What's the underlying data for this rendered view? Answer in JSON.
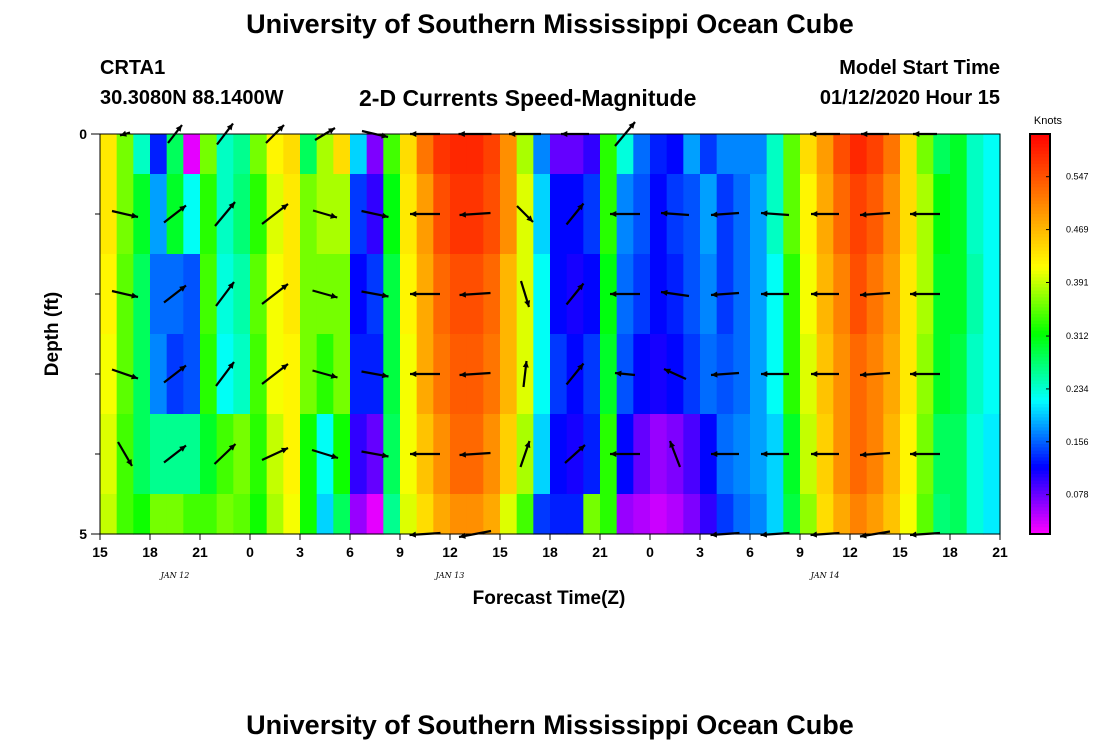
{
  "header": {
    "title_top": "University of Southern Mississippi Ocean Cube",
    "title_bottom": "University of Southern Mississippi Ocean Cube",
    "station_id": "CRTA1",
    "station_coords": "30.3080N 88.1400W",
    "plot_subtitle": "2-D Currents Speed-Magnitude",
    "model_start_label": "Model Start Time",
    "model_start_value": "01/12/2020 Hour 15"
  },
  "colors": {
    "scale": [
      "#ff00ff",
      "#8000ff",
      "#0000ff",
      "#0080ff",
      "#00ffff",
      "#00ff80",
      "#00ff00",
      "#80ff00",
      "#ffff00",
      "#ffc000",
      "#ff8000",
      "#ff4000",
      "#ff0000"
    ],
    "arrow": "#000000"
  },
  "chart_data": {
    "type": "heatmap",
    "title": "2-D Currents Speed-Magnitude",
    "xlabel": "Forecast Time(Z)",
    "ylabel": "Depth (ft)",
    "x_start_hour": 15,
    "x_range_hours": [
      0,
      54
    ],
    "x_ticks": [
      {
        "h": 0,
        "label": "15"
      },
      {
        "h": 3,
        "label": "18"
      },
      {
        "h": 6,
        "label": "21"
      },
      {
        "h": 9,
        "label": "0"
      },
      {
        "h": 12,
        "label": "3"
      },
      {
        "h": 15,
        "label": "6"
      },
      {
        "h": 18,
        "label": "9"
      },
      {
        "h": 21,
        "label": "12"
      },
      {
        "h": 24,
        "label": "15"
      },
      {
        "h": 27,
        "label": "18"
      },
      {
        "h": 30,
        "label": "21"
      },
      {
        "h": 33,
        "label": "0"
      },
      {
        "h": 36,
        "label": "3"
      },
      {
        "h": 39,
        "label": "6"
      },
      {
        "h": 42,
        "label": "9"
      },
      {
        "h": 45,
        "label": "12"
      },
      {
        "h": 48,
        "label": "15"
      },
      {
        "h": 51,
        "label": "18"
      },
      {
        "h": 54,
        "label": "21"
      }
    ],
    "date_labels": [
      {
        "h": 4.5,
        "label": "JAN 12"
      },
      {
        "h": 21,
        "label": "JAN 13"
      },
      {
        "h": 43.5,
        "label": "JAN 14"
      }
    ],
    "y_range_ft": [
      0,
      5
    ],
    "y_ticks": [
      {
        "v": 0,
        "label": "0"
      },
      {
        "v": 5,
        "label": "5"
      }
    ],
    "y_minor_ticks": [
      1,
      2,
      3,
      4
    ],
    "depth_bins_ft": [
      0,
      0.5,
      1.5,
      2.5,
      3.5,
      4.5
    ],
    "colorbar": {
      "unit": "Knots",
      "range": [
        0.02,
        0.61
      ],
      "tick_values": [
        0.078,
        0.156,
        0.234,
        0.312,
        0.391,
        0.469,
        0.547
      ],
      "tick_labels": [
        "0.078",
        "0.156",
        "0.234",
        "0.312",
        "0.391",
        "0.469",
        "0.547"
      ]
    },
    "speed_time_hours": [
      0,
      1,
      2,
      3,
      4,
      5,
      6,
      7,
      8,
      9,
      10,
      11,
      12,
      13,
      14,
      15,
      16,
      17,
      18,
      19,
      20,
      21,
      22,
      23,
      24,
      25,
      26,
      27,
      28,
      29,
      30,
      31,
      32,
      33,
      34,
      35,
      36,
      37,
      38,
      39,
      40,
      41,
      42,
      43,
      44,
      45,
      46,
      47,
      48,
      49,
      50,
      51,
      52,
      53
    ],
    "speed_knots": [
      [
        0.43,
        0.36,
        0.24,
        0.13,
        0.28,
        0.03,
        0.36,
        0.24,
        0.26,
        0.36,
        0.42,
        0.44,
        0.28,
        0.38,
        0.44,
        0.2,
        0.07,
        0.34,
        0.44,
        0.52,
        0.57,
        0.58,
        0.58,
        0.56,
        0.5,
        0.38,
        0.17,
        0.08,
        0.08,
        0.1,
        0.33,
        0.23,
        0.16,
        0.13,
        0.12,
        0.18,
        0.14,
        0.17,
        0.17,
        0.17,
        0.24,
        0.35,
        0.44,
        0.49,
        0.55,
        0.58,
        0.56,
        0.52,
        0.44,
        0.36,
        0.28,
        0.3,
        0.24,
        0.22
      ],
      [
        0.43,
        0.36,
        0.3,
        0.18,
        0.3,
        0.22,
        0.33,
        0.24,
        0.27,
        0.33,
        0.4,
        0.43,
        0.36,
        0.38,
        0.38,
        0.14,
        0.1,
        0.31,
        0.43,
        0.49,
        0.55,
        0.57,
        0.57,
        0.55,
        0.5,
        0.4,
        0.2,
        0.12,
        0.12,
        0.14,
        0.33,
        0.17,
        0.15,
        0.12,
        0.14,
        0.15,
        0.18,
        0.14,
        0.16,
        0.18,
        0.24,
        0.35,
        0.42,
        0.48,
        0.53,
        0.56,
        0.54,
        0.5,
        0.44,
        0.38,
        0.31,
        0.3,
        0.24,
        0.22
      ],
      [
        0.42,
        0.35,
        0.28,
        0.16,
        0.16,
        0.15,
        0.34,
        0.23,
        0.25,
        0.35,
        0.41,
        0.43,
        0.36,
        0.36,
        0.36,
        0.12,
        0.14,
        0.29,
        0.42,
        0.48,
        0.53,
        0.55,
        0.55,
        0.53,
        0.47,
        0.4,
        0.22,
        0.12,
        0.11,
        0.12,
        0.31,
        0.16,
        0.14,
        0.12,
        0.13,
        0.15,
        0.17,
        0.14,
        0.16,
        0.18,
        0.22,
        0.33,
        0.41,
        0.47,
        0.51,
        0.55,
        0.52,
        0.49,
        0.43,
        0.38,
        0.3,
        0.3,
        0.25,
        0.22
      ],
      [
        0.41,
        0.35,
        0.28,
        0.17,
        0.14,
        0.15,
        0.33,
        0.22,
        0.24,
        0.34,
        0.41,
        0.42,
        0.36,
        0.33,
        0.36,
        0.13,
        0.13,
        0.29,
        0.41,
        0.48,
        0.52,
        0.54,
        0.54,
        0.52,
        0.47,
        0.4,
        0.22,
        0.14,
        0.12,
        0.14,
        0.3,
        0.15,
        0.12,
        0.11,
        0.12,
        0.14,
        0.16,
        0.15,
        0.16,
        0.18,
        0.22,
        0.33,
        0.4,
        0.46,
        0.5,
        0.53,
        0.51,
        0.48,
        0.43,
        0.37,
        0.3,
        0.29,
        0.24,
        0.22
      ],
      [
        0.4,
        0.34,
        0.28,
        0.26,
        0.26,
        0.26,
        0.3,
        0.34,
        0.36,
        0.33,
        0.39,
        0.42,
        0.32,
        0.22,
        0.32,
        0.1,
        0.08,
        0.28,
        0.41,
        0.46,
        0.5,
        0.53,
        0.53,
        0.5,
        0.45,
        0.38,
        0.2,
        0.12,
        0.11,
        0.13,
        0.33,
        0.12,
        0.08,
        0.06,
        0.07,
        0.09,
        0.12,
        0.16,
        0.17,
        0.18,
        0.2,
        0.3,
        0.39,
        0.45,
        0.5,
        0.53,
        0.51,
        0.47,
        0.42,
        0.36,
        0.28,
        0.28,
        0.23,
        0.21
      ],
      [
        0.39,
        0.34,
        0.32,
        0.36,
        0.36,
        0.34,
        0.34,
        0.36,
        0.35,
        0.32,
        0.38,
        0.41,
        0.32,
        0.2,
        0.28,
        0.06,
        0.03,
        0.26,
        0.4,
        0.44,
        0.48,
        0.5,
        0.5,
        0.48,
        0.4,
        0.34,
        0.14,
        0.13,
        0.13,
        0.36,
        0.33,
        0.06,
        0.05,
        0.04,
        0.05,
        0.07,
        0.1,
        0.14,
        0.16,
        0.17,
        0.2,
        0.29,
        0.37,
        0.44,
        0.48,
        0.51,
        0.49,
        0.46,
        0.41,
        0.35,
        0.27,
        0.28,
        0.23,
        0.21
      ]
    ],
    "arrow_time_hours": [
      1.5,
      4.5,
      7.5,
      10.5,
      13.5,
      16.5,
      19.5,
      22.5,
      25.5,
      28.5,
      31.5,
      34.5,
      37.5,
      40.5,
      43.5,
      46.5,
      49.5
    ],
    "arrow_depths_ft": [
      0,
      1,
      2,
      3,
      4,
      5
    ],
    "arrows": [
      [
        [
          -0.1,
          0.03
        ],
        [
          0.14,
          -0.18
        ],
        [
          0.16,
          -0.21
        ],
        [
          0.18,
          -0.18
        ],
        [
          0.2,
          -0.12
        ],
        [
          0.26,
          0.06
        ],
        [
          -0.3,
          0.0
        ],
        [
          -0.33,
          0.0
        ],
        [
          -0.32,
          0.0
        ],
        [
          -0.28,
          0.0
        ],
        [
          0.2,
          -0.24
        ],
        [
          0.0,
          0.0
        ],
        [
          0.0,
          0.0
        ],
        [
          0.0,
          0.0
        ],
        [
          -0.3,
          0.0
        ],
        [
          -0.28,
          0.0
        ],
        [
          -0.24,
          0.0
        ]
      ],
      [
        [
          0.26,
          0.06
        ],
        [
          0.22,
          -0.17
        ],
        [
          0.2,
          -0.24
        ],
        [
          0.26,
          -0.2
        ],
        [
          0.24,
          0.07
        ],
        [
          0.27,
          0.06
        ],
        [
          -0.3,
          0.0
        ],
        [
          -0.31,
          0.02
        ],
        [
          0.16,
          0.16
        ],
        [
          0.17,
          -0.21
        ],
        [
          -0.3,
          0.0
        ],
        [
          -0.28,
          -0.02
        ],
        [
          -0.28,
          0.02
        ],
        [
          -0.28,
          -0.02
        ],
        [
          -0.28,
          0.0
        ],
        [
          -0.3,
          0.02
        ],
        [
          -0.3,
          0.0
        ]
      ],
      [
        [
          0.26,
          0.06
        ],
        [
          0.22,
          -0.17
        ],
        [
          0.18,
          -0.24
        ],
        [
          0.26,
          -0.2
        ],
        [
          0.25,
          0.07
        ],
        [
          0.27,
          0.05
        ],
        [
          -0.3,
          0.0
        ],
        [
          -0.31,
          0.02
        ],
        [
          0.08,
          0.26
        ],
        [
          0.17,
          -0.21
        ],
        [
          -0.3,
          0.0
        ],
        [
          -0.28,
          -0.04
        ],
        [
          -0.28,
          0.02
        ],
        [
          -0.28,
          0.0
        ],
        [
          -0.28,
          0.0
        ],
        [
          -0.3,
          0.02
        ],
        [
          -0.3,
          0.0
        ]
      ],
      [
        [
          0.26,
          0.09
        ],
        [
          0.22,
          -0.17
        ],
        [
          0.18,
          -0.24
        ],
        [
          0.26,
          -0.2
        ],
        [
          0.25,
          0.07
        ],
        [
          0.27,
          0.05
        ],
        [
          -0.3,
          0.0
        ],
        [
          -0.31,
          0.02
        ],
        [
          0.03,
          -0.26
        ],
        [
          0.17,
          -0.21
        ],
        [
          -0.2,
          -0.02
        ],
        [
          -0.22,
          -0.1
        ],
        [
          -0.28,
          0.02
        ],
        [
          -0.28,
          0.0
        ],
        [
          -0.28,
          0.0
        ],
        [
          -0.3,
          0.02
        ],
        [
          -0.3,
          0.0
        ]
      ],
      [
        [
          0.14,
          0.24
        ],
        [
          0.22,
          -0.17
        ],
        [
          0.21,
          -0.2
        ],
        [
          0.26,
          -0.12
        ],
        [
          0.26,
          0.08
        ],
        [
          0.27,
          0.05
        ],
        [
          -0.3,
          0.0
        ],
        [
          -0.31,
          0.02
        ],
        [
          0.09,
          -0.26
        ],
        [
          0.2,
          -0.18
        ],
        [
          -0.3,
          0.0
        ],
        [
          -0.1,
          -0.26
        ],
        [
          -0.28,
          0.0
        ],
        [
          -0.28,
          0.0
        ],
        [
          -0.28,
          0.0
        ],
        [
          -0.3,
          0.02
        ],
        [
          -0.3,
          0.0
        ]
      ],
      [
        [
          0.0,
          0.0
        ],
        [
          0.0,
          0.0
        ],
        [
          0.0,
          0.0
        ],
        [
          0.0,
          0.0
        ],
        [
          0.0,
          0.0
        ],
        [
          0.0,
          0.0
        ],
        [
          -0.31,
          0.02
        ],
        [
          -0.32,
          0.06
        ],
        [
          0.0,
          0.0
        ],
        [
          0.0,
          0.0
        ],
        [
          0.0,
          0.0
        ],
        [
          0.0,
          0.0
        ],
        [
          -0.29,
          0.02
        ],
        [
          -0.29,
          0.02
        ],
        [
          -0.29,
          0.02
        ],
        [
          -0.3,
          0.05
        ],
        [
          -0.3,
          0.02
        ]
      ]
    ]
  }
}
